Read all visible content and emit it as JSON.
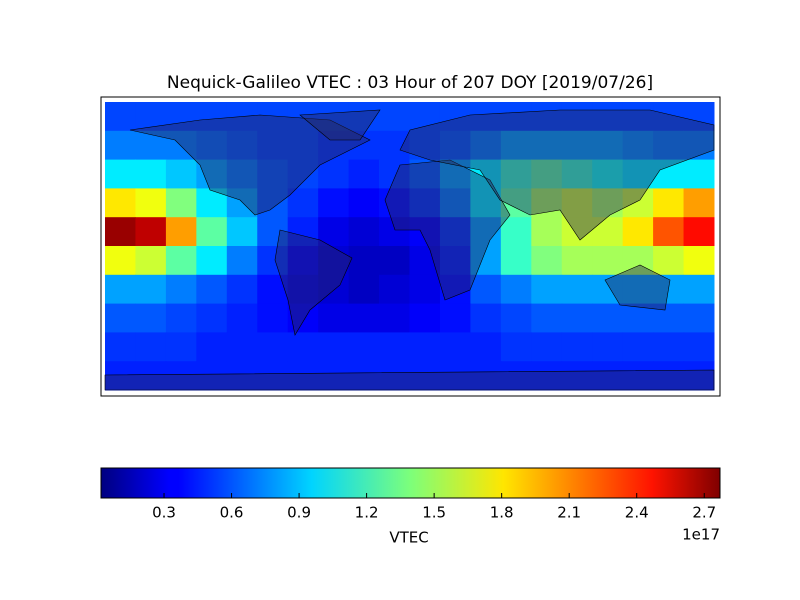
{
  "chart_data": {
    "type": "heatmap",
    "title": "Nequick-Galileo VTEC : 03 Hour of 207 DOY [2019/07/26]",
    "xlim": [
      -180,
      180
    ],
    "ylim": [
      -90,
      90
    ],
    "values": [
      [
        0.55,
        0.55,
        0.55,
        0.55,
        0.55,
        0.55,
        0.55,
        0.55,
        0.55,
        0.55,
        0.55,
        0.55,
        0.55,
        0.55,
        0.55,
        0.55,
        0.55,
        0.55,
        0.55,
        0.55
      ],
      [
        0.7,
        0.7,
        0.7,
        0.65,
        0.6,
        0.55,
        0.55,
        0.5,
        0.5,
        0.5,
        0.55,
        0.6,
        0.7,
        0.8,
        0.8,
        0.8,
        0.8,
        0.75,
        0.7,
        0.7
      ],
      [
        1.0,
        1.0,
        0.9,
        0.8,
        0.7,
        0.6,
        0.55,
        0.5,
        0.45,
        0.5,
        0.6,
        0.8,
        1.0,
        1.2,
        1.3,
        1.2,
        1.1,
        1.0,
        1.0,
        1.0
      ],
      [
        1.8,
        1.7,
        1.4,
        1.0,
        0.8,
        0.6,
        0.5,
        0.4,
        0.35,
        0.4,
        0.5,
        0.7,
        1.0,
        1.3,
        1.5,
        1.6,
        1.5,
        1.6,
        1.8,
        2.0
      ],
      [
        2.7,
        2.6,
        2.0,
        1.3,
        0.9,
        0.6,
        0.45,
        0.3,
        0.25,
        0.3,
        0.35,
        0.5,
        0.8,
        1.2,
        1.5,
        1.6,
        1.6,
        1.8,
        2.2,
        2.4
      ],
      [
        1.7,
        1.6,
        1.3,
        1.0,
        0.7,
        0.5,
        0.35,
        0.25,
        0.2,
        0.2,
        0.3,
        0.45,
        0.8,
        1.2,
        1.4,
        1.5,
        1.5,
        1.5,
        1.6,
        1.7
      ],
      [
        0.8,
        0.8,
        0.7,
        0.6,
        0.5,
        0.4,
        0.3,
        0.25,
        0.2,
        0.25,
        0.3,
        0.4,
        0.6,
        0.7,
        0.8,
        0.8,
        0.8,
        0.8,
        0.8,
        0.8
      ],
      [
        0.6,
        0.6,
        0.55,
        0.5,
        0.45,
        0.4,
        0.35,
        0.3,
        0.3,
        0.3,
        0.35,
        0.4,
        0.5,
        0.55,
        0.6,
        0.6,
        0.6,
        0.6,
        0.6,
        0.6
      ],
      [
        0.5,
        0.5,
        0.5,
        0.45,
        0.45,
        0.45,
        0.45,
        0.45,
        0.45,
        0.45,
        0.45,
        0.45,
        0.45,
        0.5,
        0.5,
        0.5,
        0.5,
        0.5,
        0.5,
        0.5
      ],
      [
        0.45,
        0.45,
        0.45,
        0.45,
        0.45,
        0.45,
        0.45,
        0.45,
        0.45,
        0.45,
        0.45,
        0.45,
        0.45,
        0.45,
        0.45,
        0.45,
        0.45,
        0.45,
        0.45,
        0.45
      ]
    ],
    "colorbar": {
      "label": "VTEC",
      "offset_label": "1e17",
      "lim": [
        0.02,
        2.77
      ],
      "ticks": [
        0.3,
        0.6,
        0.9,
        1.2,
        1.5,
        1.8,
        2.1,
        2.4,
        2.7
      ]
    }
  }
}
